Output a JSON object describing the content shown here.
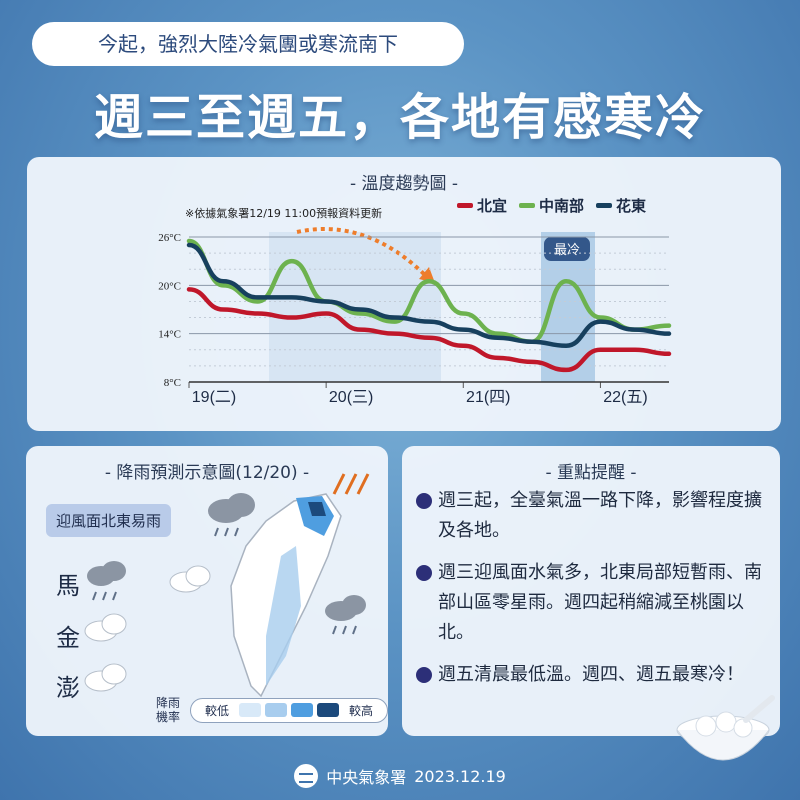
{
  "header": {
    "subtitle": "今起，強烈大陸冷氣團或寒流南下",
    "headline": "週三至週五，各地有感寒冷"
  },
  "chart_panel": {
    "title": "- 溫度趨勢圖 -",
    "note": "※依據氣象署12/19 11:00預報資料更新",
    "coldest_label": "最冷",
    "colors": {
      "north_yilan": "#c0172a",
      "central_south": "#6db24f",
      "hualien_taitung": "#17405e",
      "highlight": "#9cc3e3"
    }
  },
  "chart_data": {
    "type": "line",
    "title": "溫度趨勢圖",
    "xlabel": "",
    "ylabel": "",
    "ylim": [
      8,
      26
    ],
    "y_ticks": [
      "26°C",
      "20°C",
      "14°C",
      "8°C"
    ],
    "x_ticks": [
      "19(二)",
      "20(三)",
      "21(四)",
      "22(五)"
    ],
    "grid": true,
    "legend": "top-right",
    "x": [
      0,
      0.25,
      0.5,
      0.75,
      1.0,
      1.25,
      1.5,
      1.75,
      2.0,
      2.25,
      2.5,
      2.75,
      3.0,
      3.25,
      3.5
    ],
    "series": [
      {
        "name": "北宜",
        "values": [
          19.5,
          17,
          16.5,
          16,
          16.5,
          14.5,
          14,
          13.5,
          12.5,
          11,
          10.5,
          9.5,
          12,
          12,
          11.5
        ]
      },
      {
        "name": "中南部",
        "values": [
          25.5,
          20,
          18,
          23,
          18,
          16.5,
          15.5,
          20.5,
          16.5,
          14,
          13,
          20.5,
          16,
          14.5,
          15
        ]
      },
      {
        "name": "花東",
        "values": [
          25,
          20.5,
          18.5,
          18.5,
          18,
          17,
          16,
          15.5,
          14.5,
          13.5,
          13,
          12.5,
          15.5,
          14.5,
          14
        ]
      }
    ]
  },
  "rain_panel": {
    "title": "- 降雨預測示意圖(12/20) -",
    "windward_label": "迎風面北東易雨",
    "islands": [
      "馬",
      "金",
      "澎"
    ],
    "scale_label": "降雨機率",
    "scale_low": "較低",
    "scale_high": "較高",
    "scale_colors": [
      "#d8e9f8",
      "#a8cdee",
      "#4f9ee0",
      "#1c4a7c"
    ]
  },
  "notes_panel": {
    "title": "- 重點提醒 -",
    "items": [
      "週三起，全臺氣溫一路下降，影響程度擴及各地。",
      "週三迎風面水氣多，北東局部短暫雨、南部山區零星雨。週四起稍縮減至桃園以北。",
      "週五清晨最低溫。週四、週五最寒冷！"
    ]
  },
  "footer": {
    "agency": "中央氣象署",
    "date": "2023.12.19"
  }
}
